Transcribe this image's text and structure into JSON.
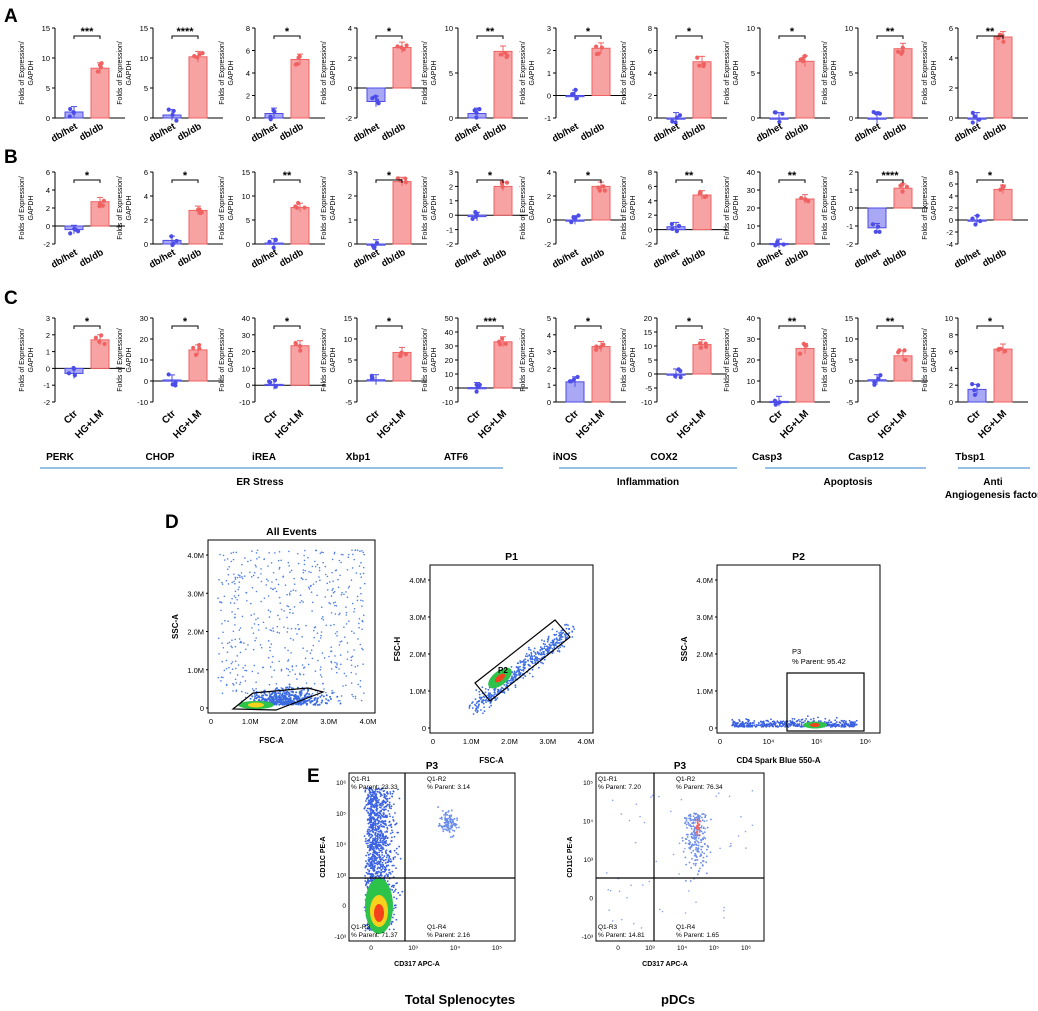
{
  "panel_letters": {
    "a": "A",
    "b": "B",
    "c": "C",
    "d": "D",
    "e": "E"
  },
  "y_axis_label_line1": "Folds of Expression/",
  "y_axis_label_line2": "GAPDH",
  "group_labels": {
    "ab": [
      "db/het",
      "db/db"
    ],
    "c": [
      "Ctr",
      "HG+LM"
    ]
  },
  "colors": {
    "control": "#4c4ce8",
    "treated": "#f06262",
    "treated_fill": "#f7a3a3",
    "control_fill": "#a8a8f4",
    "category_line": "#5b9bd5"
  },
  "gene_names": [
    "PERK",
    "CHOP",
    "iREA",
    "Xbp1",
    "ATF6",
    "iNOS",
    "COX2",
    "Casp3",
    "Casp12",
    "Tbsp1"
  ],
  "categories": [
    {
      "label": "ER Stress",
      "label2": ""
    },
    {
      "label": "Inflammation",
      "label2": ""
    },
    {
      "label": "Apoptosis",
      "label2": ""
    },
    {
      "label": "Anti",
      "label2": "Angiogenesis factor"
    }
  ],
  "chart_data": [
    {
      "type": "bar",
      "panel": "A",
      "charts": [
        {
          "ylim": [
            0,
            15
          ],
          "ticks": [
            0,
            5,
            10,
            15
          ],
          "values": [
            1,
            8.3
          ],
          "sig": "***"
        },
        {
          "ylim": [
            0,
            15
          ],
          "ticks": [
            0,
            5,
            10,
            15
          ],
          "values": [
            0.5,
            10.2
          ],
          "sig": "****"
        },
        {
          "ylim": [
            0,
            8
          ],
          "ticks": [
            0,
            2,
            4,
            6,
            8
          ],
          "values": [
            0.4,
            5.2
          ],
          "sig": "*"
        },
        {
          "ylim": [
            -2,
            4
          ],
          "ticks": [
            -2,
            0,
            2,
            4
          ],
          "values": [
            -0.9,
            2.7
          ],
          "sig": "*"
        },
        {
          "ylim": [
            0,
            10
          ],
          "ticks": [
            0,
            5,
            10
          ],
          "values": [
            0.5,
            7.4
          ],
          "sig": "**"
        },
        {
          "ylim": [
            -1,
            3
          ],
          "ticks": [
            -1,
            0,
            1,
            2,
            3
          ],
          "values": [
            0,
            2.1
          ],
          "sig": "*"
        },
        {
          "ylim": [
            0,
            8
          ],
          "ticks": [
            0,
            2,
            4,
            6,
            8
          ],
          "values": [
            0,
            5
          ],
          "sig": "*"
        },
        {
          "ylim": [
            0,
            10
          ],
          "ticks": [
            0,
            5,
            10
          ],
          "values": [
            0,
            6.3
          ],
          "sig": "*"
        },
        {
          "ylim": [
            0,
            10
          ],
          "ticks": [
            0,
            5,
            10
          ],
          "values": [
            0,
            7.7
          ],
          "sig": "**"
        },
        {
          "ylim": [
            0,
            6
          ],
          "ticks": [
            0,
            2,
            4,
            6
          ],
          "values": [
            0,
            5.4
          ],
          "sig": "**"
        }
      ]
    },
    {
      "type": "bar",
      "panel": "B",
      "charts": [
        {
          "ylim": [
            -2,
            6
          ],
          "ticks": [
            -2,
            0,
            2,
            4,
            6
          ],
          "values": [
            -0.4,
            2.7
          ],
          "sig": "*"
        },
        {
          "ylim": [
            0,
            6
          ],
          "ticks": [
            0,
            2,
            4,
            6
          ],
          "values": [
            0.3,
            2.8
          ],
          "sig": "*"
        },
        {
          "ylim": [
            0,
            15
          ],
          "ticks": [
            0,
            5,
            10,
            15
          ],
          "values": [
            0.2,
            7.6
          ],
          "sig": "**"
        },
        {
          "ylim": [
            0,
            3
          ],
          "ticks": [
            0,
            1,
            2,
            3
          ],
          "values": [
            0,
            2.6
          ],
          "sig": "*"
        },
        {
          "ylim": [
            -2,
            3
          ],
          "ticks": [
            -2,
            -1,
            0,
            1,
            2,
            3
          ],
          "values": [
            -0.1,
            2.0
          ],
          "sig": "*"
        },
        {
          "ylim": [
            -2,
            4
          ],
          "ticks": [
            -2,
            0,
            2,
            4
          ],
          "values": [
            0,
            2.8
          ],
          "sig": "*"
        },
        {
          "ylim": [
            -2,
            8
          ],
          "ticks": [
            -2,
            0,
            2,
            4,
            6,
            8
          ],
          "values": [
            0.4,
            4.8
          ],
          "sig": "**"
        },
        {
          "ylim": [
            0,
            40
          ],
          "ticks": [
            0,
            10,
            20,
            30,
            40
          ],
          "values": [
            0.3,
            25
          ],
          "sig": "**"
        },
        {
          "ylim": [
            -2,
            2
          ],
          "ticks": [
            -2,
            -1,
            0,
            1,
            2
          ],
          "values": [
            -1.1,
            1.1
          ],
          "sig": "****"
        },
        {
          "ylim": [
            -4,
            8
          ],
          "ticks": [
            -4,
            -2,
            0,
            2,
            4,
            6,
            8
          ],
          "values": [
            0,
            5.1
          ],
          "sig": "*"
        }
      ]
    },
    {
      "type": "bar",
      "panel": "C",
      "charts": [
        {
          "ylim": [
            -2,
            3
          ],
          "ticks": [
            -2,
            -1,
            0,
            1,
            2,
            3
          ],
          "values": [
            -0.3,
            1.7
          ],
          "sig": "*"
        },
        {
          "ylim": [
            -10,
            30
          ],
          "ticks": [
            -10,
            0,
            10,
            20,
            30
          ],
          "values": [
            0.5,
            14.8
          ],
          "sig": "*"
        },
        {
          "ylim": [
            -10,
            40
          ],
          "ticks": [
            -10,
            0,
            10,
            20,
            30,
            40
          ],
          "values": [
            0.5,
            23.5
          ],
          "sig": "*"
        },
        {
          "ylim": [
            -5,
            15
          ],
          "ticks": [
            -5,
            0,
            5,
            10,
            15
          ],
          "values": [
            0.3,
            6.8
          ],
          "sig": "*"
        },
        {
          "ylim": [
            -10,
            50
          ],
          "ticks": [
            -10,
            0,
            10,
            20,
            30,
            40,
            50
          ],
          "values": [
            0.3,
            33
          ],
          "sig": "***"
        },
        {
          "ylim": [
            0,
            5
          ],
          "ticks": [
            0,
            1,
            2,
            3,
            4,
            5
          ],
          "values": [
            1.2,
            3.3
          ],
          "sig": "*"
        },
        {
          "ylim": [
            -10,
            20
          ],
          "ticks": [
            -10,
            -5,
            0,
            5,
            10,
            15,
            20
          ],
          "values": [
            0,
            10.5
          ],
          "sig": "*"
        },
        {
          "ylim": [
            0,
            40
          ],
          "ticks": [
            0,
            10,
            20,
            30,
            40
          ],
          "values": [
            0.3,
            25.5
          ],
          "sig": "**"
        },
        {
          "ylim": [
            -5,
            15
          ],
          "ticks": [
            -5,
            0,
            5,
            10,
            15
          ],
          "values": [
            0.3,
            6
          ],
          "sig": "**"
        },
        {
          "ylim": [
            0,
            10
          ],
          "ticks": [
            0,
            2,
            4,
            6,
            8,
            10
          ],
          "values": [
            1.5,
            6.3
          ],
          "sig": "*"
        }
      ]
    },
    {
      "type": "scatter",
      "panel": "D",
      "plots": [
        {
          "title": "All Events",
          "xlabel": "FSC-A",
          "ylabel": "SSC-A",
          "xticks": [
            "0",
            "1.0M",
            "2.0M",
            "3.0M",
            "4.0M"
          ],
          "yticks": [
            "0",
            "1.0M",
            "2.0M",
            "3.0M",
            "4.0M"
          ],
          "gate": "",
          "gate_stat": ""
        },
        {
          "title": "P1",
          "xlabel": "FSC-A",
          "ylabel": "FSC-H",
          "xticks": [
            "0",
            "1.0M",
            "2.0M",
            "3.0M",
            "4.0M"
          ],
          "yticks": [
            "0",
            "1.0M",
            "2.0M",
            "3.0M",
            "4.0M"
          ],
          "gate": "P2",
          "gate_stat": ""
        },
        {
          "title": "P2",
          "xlabel": "CD4 Spark Blue 550-A",
          "ylabel": "SSC-A",
          "xticks": [
            "0",
            "10⁴",
            "10⁵",
            "10⁶"
          ],
          "yticks": [
            "0",
            "1.0M",
            "2.0M",
            "3.0M",
            "4.0M"
          ],
          "gate": "P3",
          "gate_stat": "% Parent: 95.42"
        }
      ]
    },
    {
      "type": "scatter",
      "panel": "E",
      "plots": [
        {
          "title": "P3",
          "caption": "Total Splenocytes",
          "xlabel": "CD317 APC-A",
          "ylabel": "CD11C PE-A",
          "xticks": [
            "0",
            "10³",
            "10⁴",
            "10⁵"
          ],
          "yticks": [
            "-10³",
            "0",
            "10³",
            "10⁴",
            "10⁵",
            "10⁶"
          ],
          "quads": [
            {
              "name": "Q1-R1",
              "stat": "% Parent: 23.33"
            },
            {
              "name": "Q1-R2",
              "stat": "% Parent: 3.14"
            },
            {
              "name": "Q1-R3",
              "stat": "% Parent: 71.37"
            },
            {
              "name": "Q1-R4",
              "stat": "% Parent: 2.16"
            }
          ]
        },
        {
          "title": "P3",
          "caption": "pDCs",
          "xlabel": "CD317 APC-A",
          "ylabel": "CD11C PE-A",
          "xticks": [
            "0",
            "10³",
            "10⁴",
            "10⁵",
            "10⁶"
          ],
          "yticks": [
            "-10³",
            "0",
            "10³",
            "10⁴",
            "10⁵"
          ],
          "quads": [
            {
              "name": "Q1-R1",
              "stat": "% Parent: 7.20"
            },
            {
              "name": "Q1-R2",
              "stat": "% Parent: 76.34"
            },
            {
              "name": "Q1-R3",
              "stat": "% Parent: 14.81"
            },
            {
              "name": "Q1-R4",
              "stat": "% Parent: 1.65"
            }
          ]
        }
      ]
    }
  ]
}
